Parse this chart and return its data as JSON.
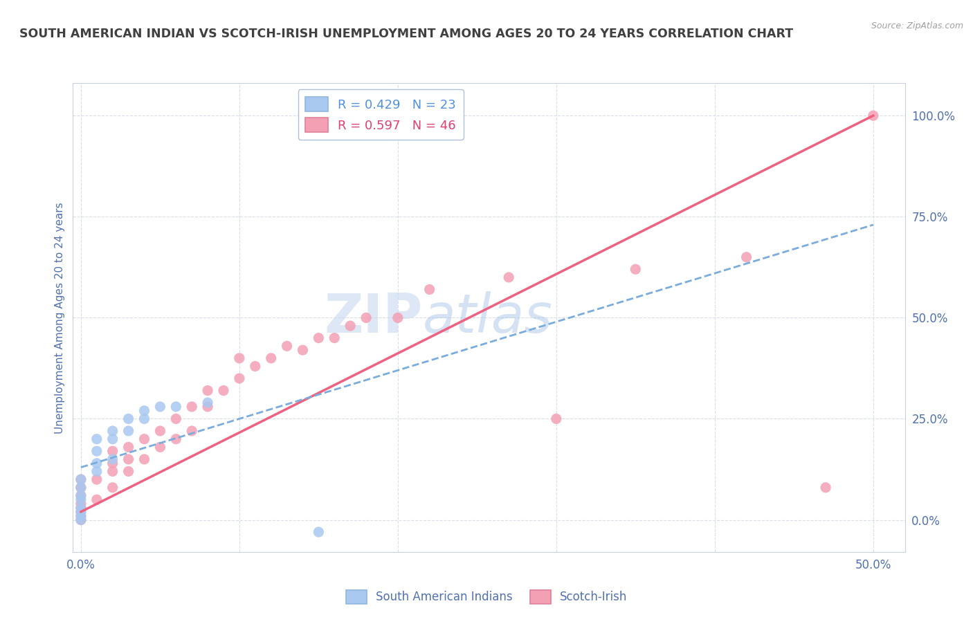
{
  "title": "SOUTH AMERICAN INDIAN VS SCOTCH-IRISH UNEMPLOYMENT AMONG AGES 20 TO 24 YEARS CORRELATION CHART",
  "source_text": "Source: ZipAtlas.com",
  "ylabel": "Unemployment Among Ages 20 to 24 years",
  "xlim": [
    -0.005,
    0.52
  ],
  "ylim": [
    -0.08,
    1.08
  ],
  "xtick_positions": [
    0.0,
    0.5
  ],
  "xtick_labels": [
    "0.0%",
    "50.0%"
  ],
  "ytick_positions": [
    0.0,
    0.25,
    0.5,
    0.75,
    1.0
  ],
  "ytick_labels_right": [
    "0.0%",
    "25.0%",
    "50.0%",
    "75.0%",
    "100.0%"
  ],
  "legend_blue_label": "R = 0.429   N = 23",
  "legend_pink_label": "R = 0.597   N = 46",
  "blue_color": "#a8c8f0",
  "pink_color": "#f4a0b4",
  "blue_line_color": "#7aacdc",
  "pink_line_color": "#f06080",
  "watermark": "ZIPatlas",
  "watermark_color": "#c8d8f0",
  "grid_color": "#d8dde8",
  "title_color": "#404040",
  "axis_label_color": "#5070b0",
  "blue_scatter_x": [
    0.0,
    0.0,
    0.0,
    0.0,
    0.0,
    0.0,
    0.0,
    0.0,
    0.01,
    0.01,
    0.01,
    0.01,
    0.02,
    0.02,
    0.02,
    0.03,
    0.03,
    0.04,
    0.04,
    0.05,
    0.06,
    0.08,
    0.15
  ],
  "blue_scatter_y": [
    0.0,
    0.01,
    0.02,
    0.03,
    0.05,
    0.06,
    0.08,
    0.1,
    0.12,
    0.14,
    0.17,
    0.2,
    0.15,
    0.2,
    0.22,
    0.22,
    0.25,
    0.25,
    0.27,
    0.28,
    0.28,
    0.29,
    -0.03
  ],
  "pink_scatter_x": [
    0.0,
    0.0,
    0.0,
    0.0,
    0.0,
    0.0,
    0.0,
    0.0,
    0.01,
    0.01,
    0.02,
    0.02,
    0.02,
    0.02,
    0.03,
    0.03,
    0.03,
    0.04,
    0.04,
    0.05,
    0.05,
    0.06,
    0.06,
    0.07,
    0.07,
    0.08,
    0.08,
    0.09,
    0.1,
    0.1,
    0.11,
    0.12,
    0.13,
    0.14,
    0.15,
    0.16,
    0.17,
    0.18,
    0.2,
    0.22,
    0.27,
    0.3,
    0.35,
    0.42,
    0.47,
    0.5
  ],
  "pink_scatter_y": [
    0.0,
    0.01,
    0.02,
    0.03,
    0.04,
    0.06,
    0.08,
    0.1,
    0.05,
    0.1,
    0.08,
    0.12,
    0.14,
    0.17,
    0.12,
    0.15,
    0.18,
    0.15,
    0.2,
    0.18,
    0.22,
    0.2,
    0.25,
    0.22,
    0.28,
    0.28,
    0.32,
    0.32,
    0.35,
    0.4,
    0.38,
    0.4,
    0.43,
    0.42,
    0.45,
    0.45,
    0.48,
    0.5,
    0.5,
    0.57,
    0.6,
    0.25,
    0.62,
    0.65,
    0.08,
    1.0
  ],
  "blue_trend_x": [
    0.0,
    0.5
  ],
  "blue_trend_y": [
    0.13,
    0.73
  ],
  "pink_trend_x": [
    0.0,
    0.5
  ],
  "pink_trend_y": [
    0.02,
    1.0
  ],
  "background_color": "#ffffff"
}
